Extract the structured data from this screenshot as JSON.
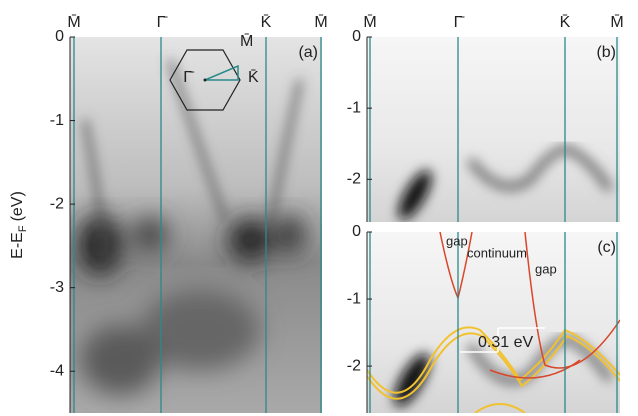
{
  "chart_data": [
    {
      "type": "image",
      "panel_label": "(a)",
      "categories": [
        "M̄",
        "Γ̄",
        "K̄",
        "M̄"
      ],
      "ylim": [
        -4.5,
        0
      ],
      "yticks": [
        0,
        -1,
        -2,
        -3,
        -4
      ],
      "ylabel": "E-E",
      "ylabel_sub": "F",
      "ylabel_unit": "(eV)",
      "inset_labels": [
        "Γ̄",
        "M̄",
        "K̄"
      ]
    },
    {
      "type": "image",
      "panel_label": "(b)",
      "categories": [
        "M̄",
        "Γ̄",
        "K̄",
        "M̄"
      ],
      "ylim": [
        -2.6,
        0
      ],
      "yticks": [
        0,
        -1,
        -2
      ]
    },
    {
      "type": "image",
      "panel_label": "(c)",
      "ylim": [
        -2.7,
        0
      ],
      "yticks": [
        0,
        -1,
        -2
      ],
      "annotations": [
        "gap",
        "continuum",
        "gap",
        "0.31 eV"
      ]
    }
  ]
}
